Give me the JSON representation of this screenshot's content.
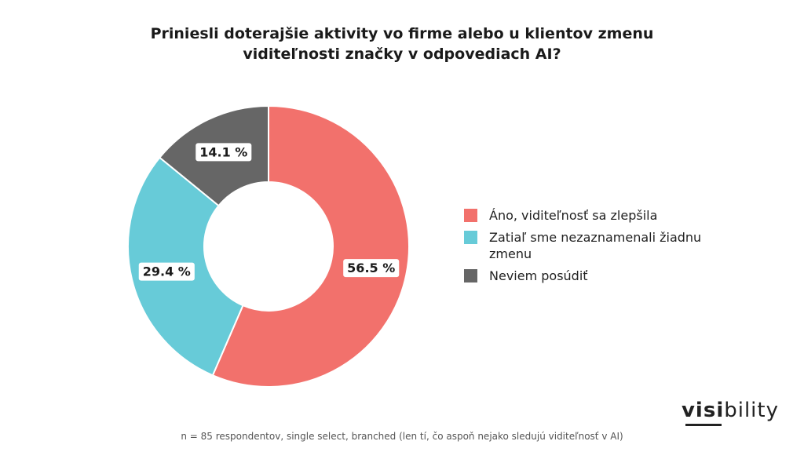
{
  "title": {
    "line1": "Priniesli doterajšie aktivity vo firme alebo u klientov zmenu",
    "line2": "viditeľnosti značky v odpovediach AI?"
  },
  "chart_data": {
    "type": "pie",
    "donut": true,
    "title": "Priniesli doterajšie aktivity vo firme alebo u klientov zmenu viditeľnosti značky v odpovediach AI?",
    "series": [
      {
        "name": "Áno, viditeľnosť sa zlepšila",
        "value": 56.5,
        "label": "56.5 %",
        "color": "#f2716c"
      },
      {
        "name": "Zatiaľ sme nezaznamenali žiadnu zmenu",
        "value": 29.4,
        "label": "29.4 %",
        "color": "#67cbd8"
      },
      {
        "name": "Neviem posúdiť",
        "value": 14.1,
        "label": "14.1 %",
        "color": "#666666"
      }
    ],
    "legend": "right"
  },
  "legend": {
    "items": [
      {
        "label": "Áno, viditeľnosť sa zlepšila",
        "color": "#f2716c"
      },
      {
        "label": "Zatiaľ sme nezaznamenali žiadnu zmenu",
        "color": "#67cbd8"
      },
      {
        "label": "Neviem posúdiť",
        "color": "#666666"
      }
    ]
  },
  "logo": {
    "bold_part": "visi",
    "rest_part": "bility"
  },
  "footnote": "n = 85 respondentov, single select, branched (len tí, čo aspoň nejako sledujú viditeľnosť v AI)"
}
